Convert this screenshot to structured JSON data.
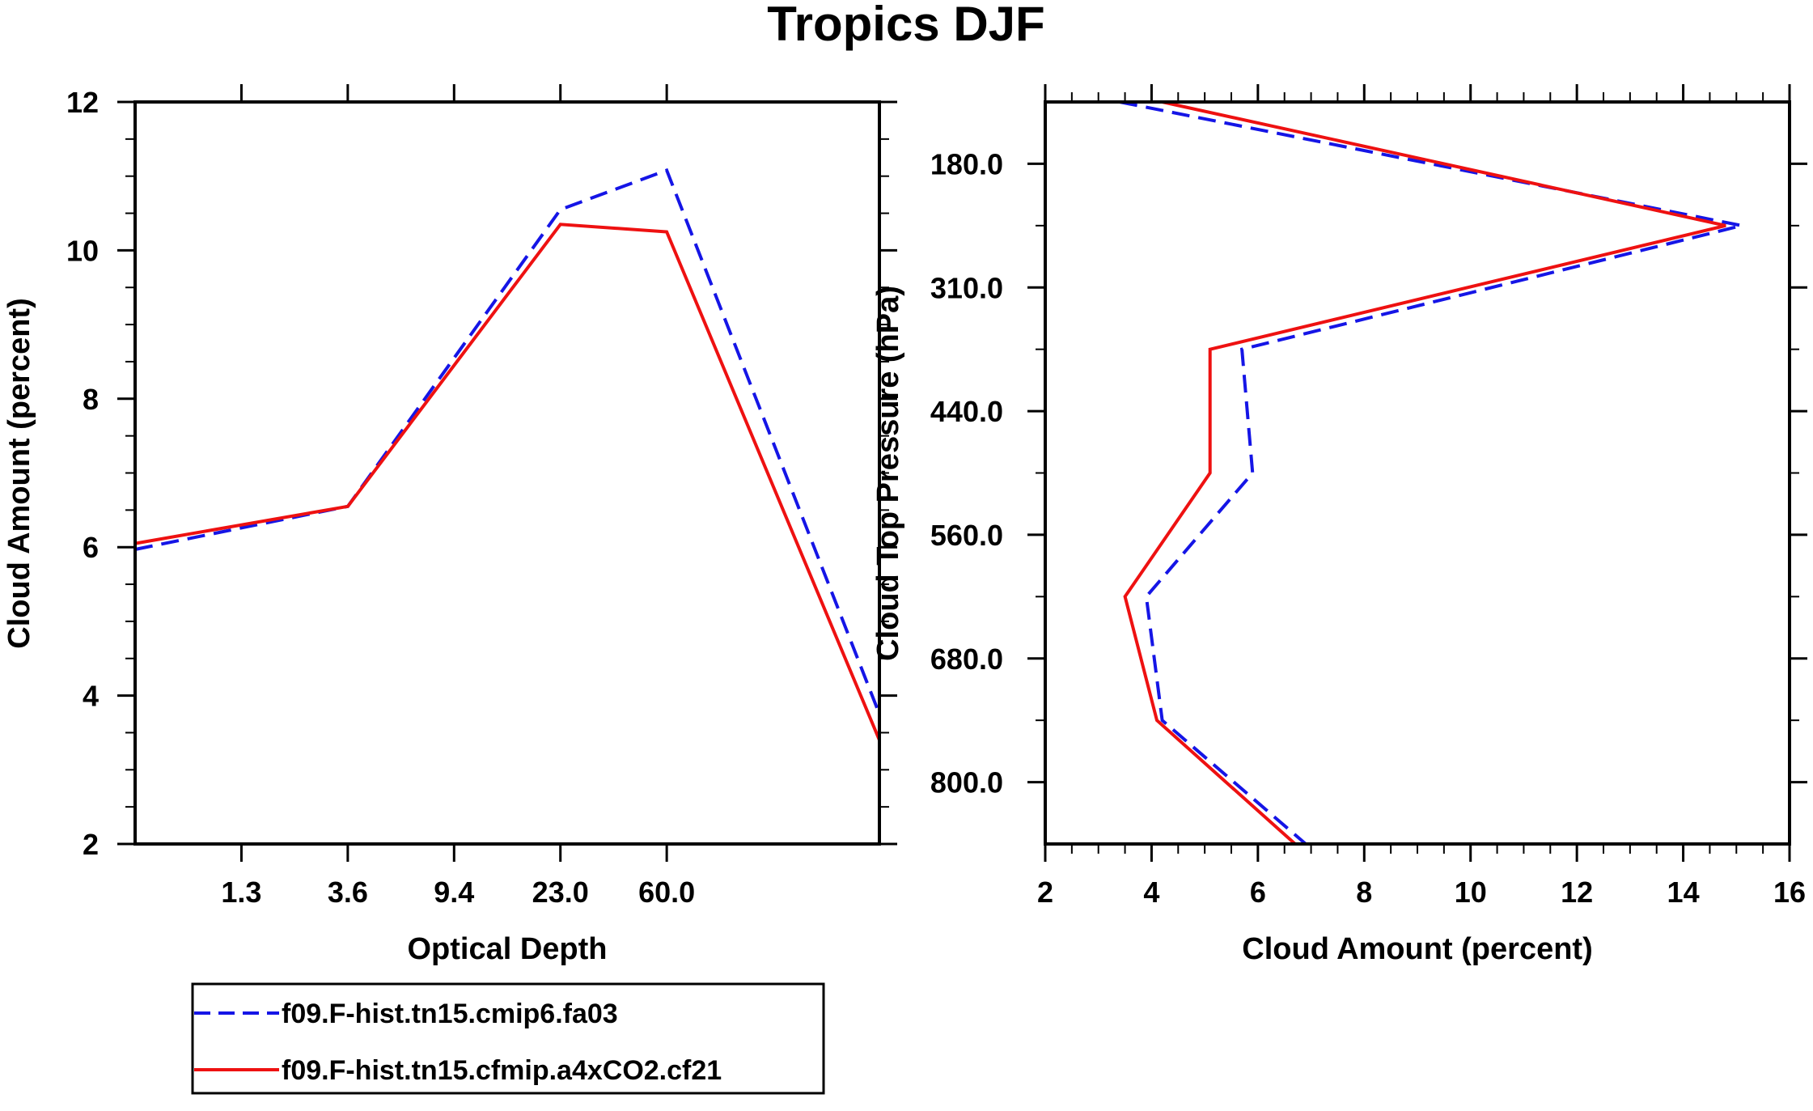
{
  "title": "Tropics DJF",
  "colors": {
    "series_a": "#1515e6",
    "series_b": "#ee1111"
  },
  "chart_data": [
    {
      "type": "line",
      "xlabel": "Optical Depth",
      "ylabel": "Cloud Amount (percent)",
      "ylim": [
        2,
        12
      ],
      "yticks": [
        "2",
        "4",
        "6",
        "8",
        "10",
        "12"
      ],
      "xtick_labels": [
        "1.3",
        "3.6",
        "9.4",
        "23.0",
        "60.0"
      ],
      "x_bins": 7,
      "series": [
        {
          "name": "f09.F-hist.tn15.cmip6.fa03",
          "style": "dashed",
          "color": "#1515e6",
          "values": [
            5.97,
            6.55,
            10.55,
            11.08,
            3.75
          ]
        },
        {
          "name": "f09.F-hist.tn15.cfmip.a4xCO2.cf21",
          "style": "solid",
          "color": "#ee1111",
          "values": [
            6.05,
            6.55,
            10.35,
            10.25,
            3.4
          ]
        }
      ]
    },
    {
      "type": "line",
      "xlabel": "Cloud Amount (percent)",
      "ylabel": "Cloud Top Pressure (hPa)",
      "xlim": [
        2,
        16
      ],
      "xticks": [
        "2",
        "4",
        "6",
        "8",
        "10",
        "12",
        "14",
        "16"
      ],
      "ytick_labels": [
        "180.0",
        "310.0",
        "440.0",
        "560.0",
        "680.0",
        "800.0"
      ],
      "y_bins": 12,
      "series": [
        {
          "name": "f09.F-hist.tn15.cmip6.fa03",
          "style": "dashed",
          "color": "#1515e6",
          "values": [
            3.4,
            15.1,
            5.7,
            5.9,
            3.9,
            4.2,
            6.9
          ]
        },
        {
          "name": "f09.F-hist.tn15.cfmip.a4xCO2.cf21",
          "style": "solid",
          "color": "#ee1111",
          "values": [
            4.2,
            14.8,
            5.1,
            5.1,
            3.5,
            4.1,
            6.7
          ]
        }
      ]
    }
  ],
  "legend": [
    {
      "label": "f09.F-hist.tn15.cmip6.fa03",
      "style": "dashed"
    },
    {
      "label": "f09.F-hist.tn15.cfmip.a4xCO2.cf21",
      "style": "solid"
    }
  ]
}
